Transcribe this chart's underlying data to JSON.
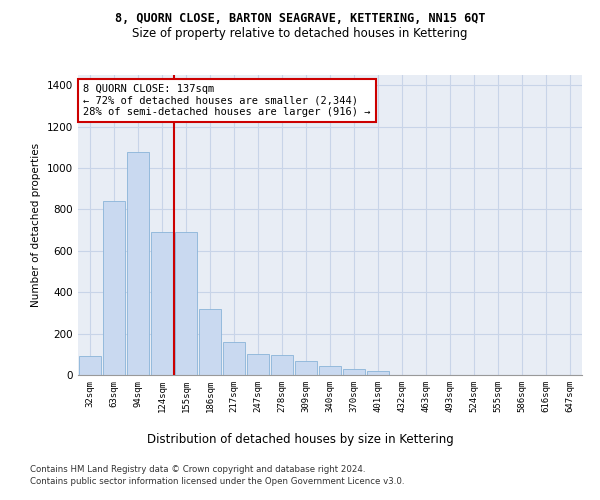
{
  "title1": "8, QUORN CLOSE, BARTON SEAGRAVE, KETTERING, NN15 6QT",
  "title2": "Size of property relative to detached houses in Kettering",
  "xlabel": "Distribution of detached houses by size in Kettering",
  "ylabel": "Number of detached properties",
  "categories": [
    "32sqm",
    "63sqm",
    "94sqm",
    "124sqm",
    "155sqm",
    "186sqm",
    "217sqm",
    "247sqm",
    "278sqm",
    "309sqm",
    "340sqm",
    "370sqm",
    "401sqm",
    "432sqm",
    "463sqm",
    "493sqm",
    "524sqm",
    "555sqm",
    "586sqm",
    "616sqm",
    "647sqm"
  ],
  "values": [
    90,
    840,
    1080,
    690,
    690,
    320,
    160,
    100,
    95,
    70,
    45,
    30,
    20,
    0,
    0,
    0,
    0,
    0,
    0,
    0,
    0
  ],
  "bar_color": "#c9d9f0",
  "bar_edge_color": "#8ab4d8",
  "vline_color": "#cc0000",
  "annotation_text": "8 QUORN CLOSE: 137sqm\n← 72% of detached houses are smaller (2,344)\n28% of semi-detached houses are larger (916) →",
  "annotation_box_color": "#cc0000",
  "ylim": [
    0,
    1450
  ],
  "yticks": [
    0,
    200,
    400,
    600,
    800,
    1000,
    1200,
    1400
  ],
  "grid_color": "#c8d4e8",
  "bg_color": "#e8edf5",
  "footer1": "Contains HM Land Registry data © Crown copyright and database right 2024.",
  "footer2": "Contains public sector information licensed under the Open Government Licence v3.0."
}
